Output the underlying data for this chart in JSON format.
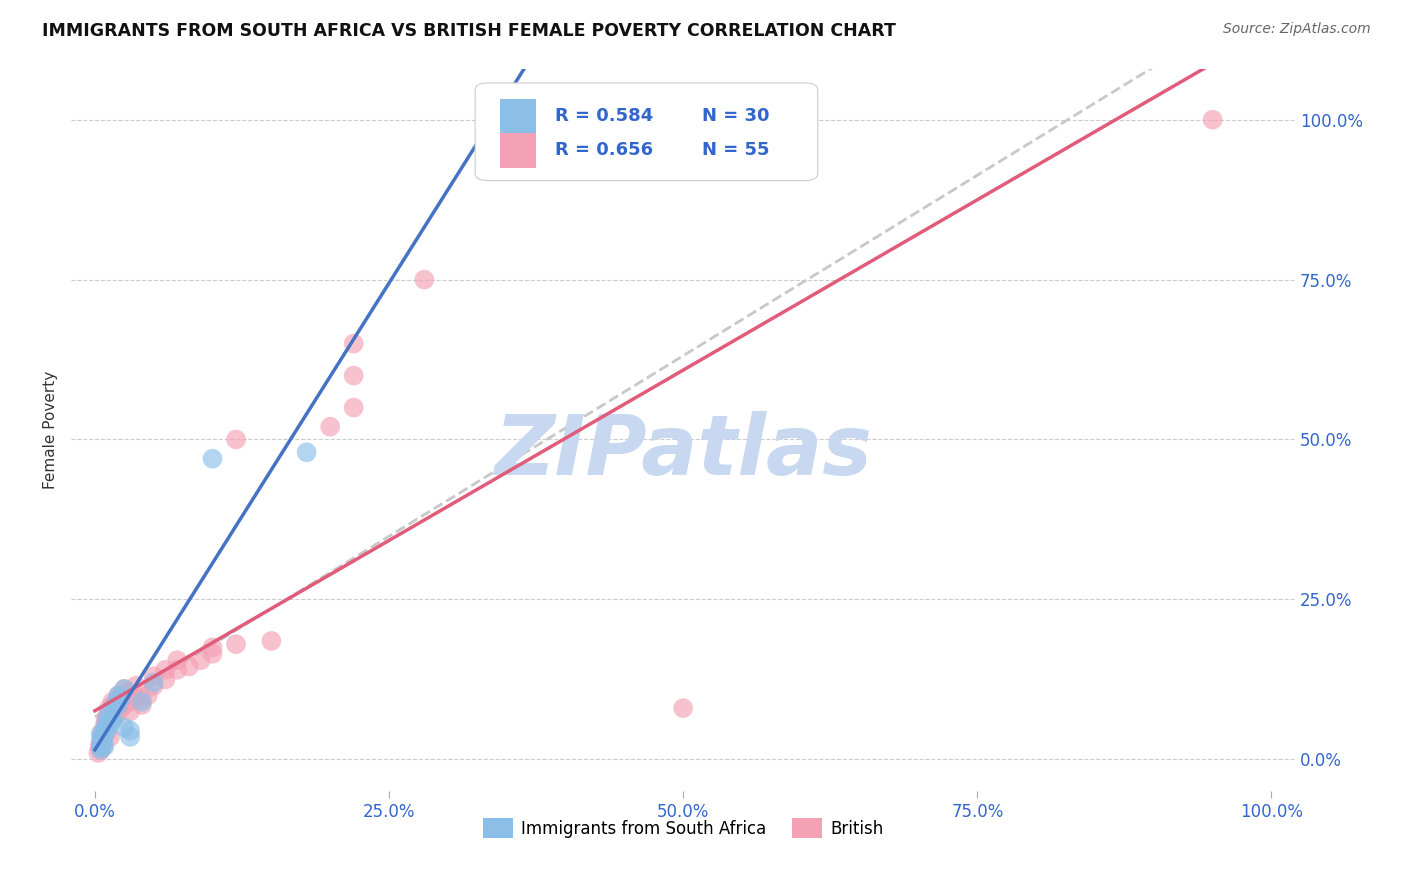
{
  "title": "IMMIGRANTS FROM SOUTH AFRICA VS BRITISH FEMALE POVERTY CORRELATION CHART",
  "source": "Source: ZipAtlas.com",
  "ylabel": "Female Poverty",
  "ytick_labels": [
    "0.0%",
    "25.0%",
    "50.0%",
    "75.0%",
    "100.0%"
  ],
  "ytick_values": [
    0,
    25,
    50,
    75,
    100
  ],
  "xtick_values": [
    0,
    25,
    50,
    75,
    100
  ],
  "xtick_labels": [
    "0.0%",
    "25.0%",
    "50.0%",
    "75.0%",
    "100.0%"
  ],
  "legend_r1": "R = 0.584",
  "legend_n1": "N = 30",
  "legend_r2": "R = 0.656",
  "legend_n2": "N = 55",
  "color_blue": "#8bbfe8",
  "color_pink": "#f4a0b5",
  "color_blue_line": "#4472c4",
  "color_pink_line": "#e05c7a",
  "color_dashed": "#c8c8c8",
  "watermark_text": "ZIPatlas",
  "watermark_color": "#c8d8f0",
  "blue_points": [
    [
      0.5,
      2.0
    ],
    [
      0.5,
      2.5
    ],
    [
      0.5,
      1.5
    ],
    [
      0.5,
      4.0
    ],
    [
      0.6,
      3.5
    ],
    [
      0.7,
      3.0
    ],
    [
      0.7,
      2.5
    ],
    [
      0.8,
      2.0
    ],
    [
      0.8,
      4.0
    ],
    [
      0.9,
      5.0
    ],
    [
      1.0,
      6.0
    ],
    [
      1.0,
      4.5
    ],
    [
      1.2,
      7.0
    ],
    [
      1.2,
      5.5
    ],
    [
      1.3,
      6.0
    ],
    [
      1.5,
      8.0
    ],
    [
      1.5,
      6.0
    ],
    [
      1.5,
      6.5
    ],
    [
      1.8,
      9.0
    ],
    [
      2.0,
      10.0
    ],
    [
      2.0,
      8.5
    ],
    [
      2.2,
      9.5
    ],
    [
      2.5,
      11.0
    ],
    [
      2.5,
      5.0
    ],
    [
      3.0,
      3.5
    ],
    [
      3.0,
      4.5
    ],
    [
      4.0,
      9.0
    ],
    [
      5.0,
      12.0
    ],
    [
      10.0,
      47.0
    ],
    [
      18.0,
      48.0
    ]
  ],
  "pink_points": [
    [
      0.3,
      1.0
    ],
    [
      0.4,
      2.0
    ],
    [
      0.5,
      1.5
    ],
    [
      0.5,
      3.0
    ],
    [
      0.6,
      2.5
    ],
    [
      0.6,
      4.0
    ],
    [
      0.7,
      2.0
    ],
    [
      0.7,
      3.5
    ],
    [
      0.8,
      5.0
    ],
    [
      0.9,
      6.0
    ],
    [
      1.0,
      4.0
    ],
    [
      1.0,
      6.5
    ],
    [
      1.1,
      7.0
    ],
    [
      1.2,
      8.0
    ],
    [
      1.2,
      5.5
    ],
    [
      1.3,
      3.5
    ],
    [
      1.4,
      6.0
    ],
    [
      1.5,
      7.5
    ],
    [
      1.5,
      9.0
    ],
    [
      1.6,
      6.5
    ],
    [
      1.8,
      8.5
    ],
    [
      1.9,
      7.0
    ],
    [
      2.0,
      10.0
    ],
    [
      2.0,
      9.5
    ],
    [
      2.2,
      8.0
    ],
    [
      2.5,
      8.5
    ],
    [
      2.5,
      11.0
    ],
    [
      2.8,
      10.5
    ],
    [
      3.0,
      7.5
    ],
    [
      3.0,
      9.0
    ],
    [
      3.5,
      9.5
    ],
    [
      3.5,
      11.5
    ],
    [
      4.0,
      8.5
    ],
    [
      4.0,
      9.5
    ],
    [
      4.5,
      10.0
    ],
    [
      5.0,
      11.5
    ],
    [
      5.0,
      13.0
    ],
    [
      6.0,
      12.5
    ],
    [
      6.0,
      14.0
    ],
    [
      7.0,
      14.0
    ],
    [
      7.0,
      15.5
    ],
    [
      8.0,
      14.5
    ],
    [
      9.0,
      15.5
    ],
    [
      10.0,
      16.5
    ],
    [
      10.0,
      17.5
    ],
    [
      12.0,
      18.0
    ],
    [
      15.0,
      18.5
    ],
    [
      12.0,
      50.0
    ],
    [
      20.0,
      52.0
    ],
    [
      22.0,
      55.0
    ],
    [
      22.0,
      60.0
    ],
    [
      22.0,
      65.0
    ],
    [
      28.0,
      75.0
    ],
    [
      95.0,
      100.0
    ],
    [
      50.0,
      8.0
    ]
  ]
}
